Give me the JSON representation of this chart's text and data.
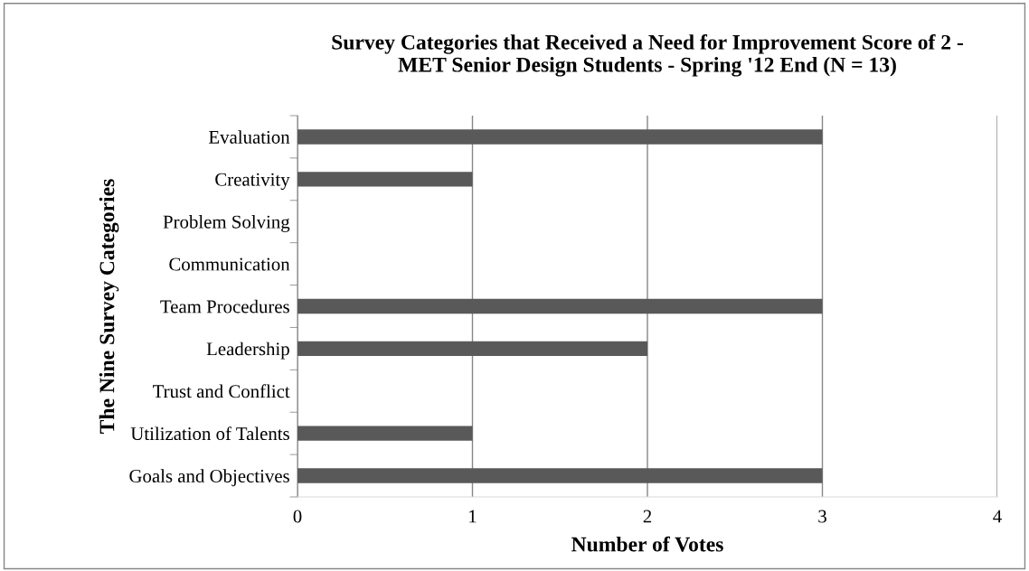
{
  "chart_data": {
    "type": "bar",
    "orientation": "horizontal",
    "title": "Survey Categories that Received a Need for Improvement Score of 2 -\nMET Senior Design Students - Spring '12 End (N = 13)",
    "xlabel": "Number of Votes",
    "ylabel": "The Nine Survey Categories",
    "categories": [
      "Evaluation",
      "Creativity",
      "Problem Solving",
      "Communication",
      "Team Procedures",
      "Leadership",
      "Trust and Conflict",
      "Utilization of Talents",
      "Goals and Objectives"
    ],
    "values": [
      3,
      1,
      0,
      0,
      3,
      2,
      0,
      1,
      3
    ],
    "color": "#595959",
    "xlim": [
      0,
      4
    ],
    "xticks": [
      0,
      1,
      2,
      3,
      4
    ],
    "grid": "x"
  }
}
